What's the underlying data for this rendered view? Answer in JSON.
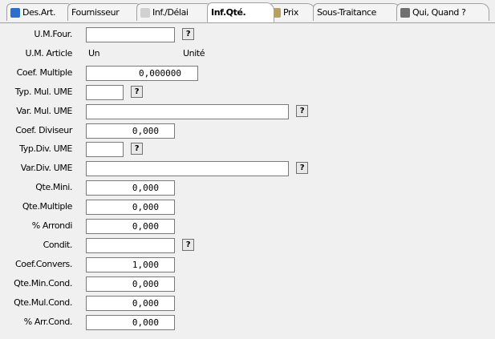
{
  "tabs": [
    "Des.Art.",
    "Fournisseur",
    "Inf./Délai",
    "Inf.Qté.",
    "Prix",
    "Sous-Traitance",
    "Qui, Quand ?"
  ],
  "active_tab": "Inf.Qté.",
  "form": {
    "rows": [
      {
        "label": "U.M.Four.",
        "value": "",
        "help": "?"
      },
      {
        "label": "U.M. Article",
        "unit": "Un",
        "unit_label": "Unité"
      },
      {
        "label": "Coef. Multiple",
        "value": "0,000000"
      },
      {
        "label": "Typ. Mul. UME",
        "value": "",
        "help": "?"
      },
      {
        "label": "Var. Mul. UME",
        "value": "",
        "help": "?"
      },
      {
        "label": "Coef. Diviseur",
        "value": "0,000"
      },
      {
        "label": "Typ.Div. UME",
        "value": "",
        "help": "?"
      },
      {
        "label": "Var.Div. UME",
        "value": "",
        "help": "?"
      },
      {
        "label": "Qte.Mini.",
        "value": "0,000"
      },
      {
        "label": "Qte.Multiple",
        "value": "0,000"
      },
      {
        "label": "% Arrondi",
        "value": "0,000"
      },
      {
        "label": "Condit.",
        "value": "",
        "help": "?"
      },
      {
        "label": "Coef.Convers.",
        "value": "1,000"
      },
      {
        "label": "Qte.Min.Cond.",
        "value": "0,000"
      },
      {
        "label": "Qte.Mul.Cond.",
        "value": "0,000"
      },
      {
        "label": "% Arr.Cond.",
        "value": "0,000"
      }
    ]
  }
}
